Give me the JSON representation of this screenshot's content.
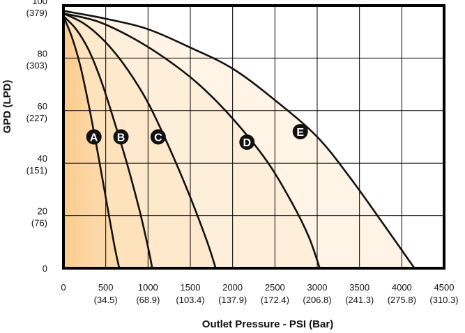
{
  "chart_data": {
    "type": "line",
    "title": "",
    "xlabel": "Outlet Pressure - PSI (Bar)",
    "ylabel": "GPD (LPD)",
    "xlim": [
      0,
      4500
    ],
    "ylim": [
      0,
      100
    ],
    "grid": true,
    "x_ticks": [
      {
        "value": 0,
        "label": "0",
        "sublabel": ""
      },
      {
        "value": 500,
        "label": "500",
        "sublabel": "(34.5)"
      },
      {
        "value": 1000,
        "label": "1000",
        "sublabel": "(68.9)"
      },
      {
        "value": 1500,
        "label": "1500",
        "sublabel": "(103.4)"
      },
      {
        "value": 2000,
        "label": "2000",
        "sublabel": "(137.9)"
      },
      {
        "value": 2500,
        "label": "2500",
        "sublabel": "(172.4)"
      },
      {
        "value": 3000,
        "label": "3000",
        "sublabel": "(206.8)"
      },
      {
        "value": 3500,
        "label": "3500",
        "sublabel": "(241.3)"
      },
      {
        "value": 4000,
        "label": "4000",
        "sublabel": "(275.8)"
      },
      {
        "value": 4500,
        "label": "4500",
        "sublabel": "(310.3)"
      }
    ],
    "y_ticks": [
      {
        "value": 0,
        "label": "0",
        "sublabel": ""
      },
      {
        "value": 20,
        "label": "20",
        "sublabel": "(76)"
      },
      {
        "value": 40,
        "label": "40",
        "sublabel": "(151)"
      },
      {
        "value": 60,
        "label": "60",
        "sublabel": "(227)"
      },
      {
        "value": 80,
        "label": "80",
        "sublabel": "(303)"
      },
      {
        "value": 100,
        "label": "100",
        "sublabel": "(379)"
      }
    ],
    "series": [
      {
        "name": "A",
        "fill": "#fcd9a8",
        "label_at": [
          360,
          50
        ],
        "points": [
          [
            0,
            96
          ],
          [
            100,
            88
          ],
          [
            200,
            77
          ],
          [
            300,
            62
          ],
          [
            400,
            45
          ],
          [
            500,
            27
          ],
          [
            600,
            9
          ],
          [
            660,
            0
          ]
        ]
      },
      {
        "name": "B",
        "fill": "#fde2bc",
        "label_at": [
          680,
          50
        ],
        "points": [
          [
            0,
            96
          ],
          [
            150,
            91
          ],
          [
            300,
            83
          ],
          [
            450,
            71
          ],
          [
            600,
            56
          ],
          [
            750,
            40
          ],
          [
            900,
            22
          ],
          [
            1000,
            8
          ],
          [
            1050,
            0
          ]
        ]
      },
      {
        "name": "C",
        "fill": "#fee9cc",
        "label_at": [
          1120,
          50
        ],
        "points": [
          [
            0,
            97
          ],
          [
            250,
            93
          ],
          [
            500,
            86
          ],
          [
            750,
            76
          ],
          [
            1000,
            63
          ],
          [
            1250,
            46
          ],
          [
            1500,
            27
          ],
          [
            1700,
            10
          ],
          [
            1800,
            0
          ]
        ]
      },
      {
        "name": "D",
        "fill": "#feefda",
        "label_at": [
          2170,
          48
        ],
        "points": [
          [
            0,
            97
          ],
          [
            400,
            94
          ],
          [
            800,
            88
          ],
          [
            1200,
            80
          ],
          [
            1600,
            70
          ],
          [
            2000,
            57
          ],
          [
            2400,
            41
          ],
          [
            2700,
            25
          ],
          [
            2900,
            12
          ],
          [
            3030,
            0
          ]
        ]
      },
      {
        "name": "E",
        "fill": "#fff4e6",
        "label_at": [
          2800,
          52
        ],
        "points": [
          [
            0,
            98
          ],
          [
            500,
            95
          ],
          [
            1000,
            91
          ],
          [
            1500,
            84
          ],
          [
            2000,
            76
          ],
          [
            2500,
            64
          ],
          [
            3000,
            50
          ],
          [
            3400,
            34
          ],
          [
            3800,
            16
          ],
          [
            4150,
            0
          ]
        ]
      }
    ]
  }
}
